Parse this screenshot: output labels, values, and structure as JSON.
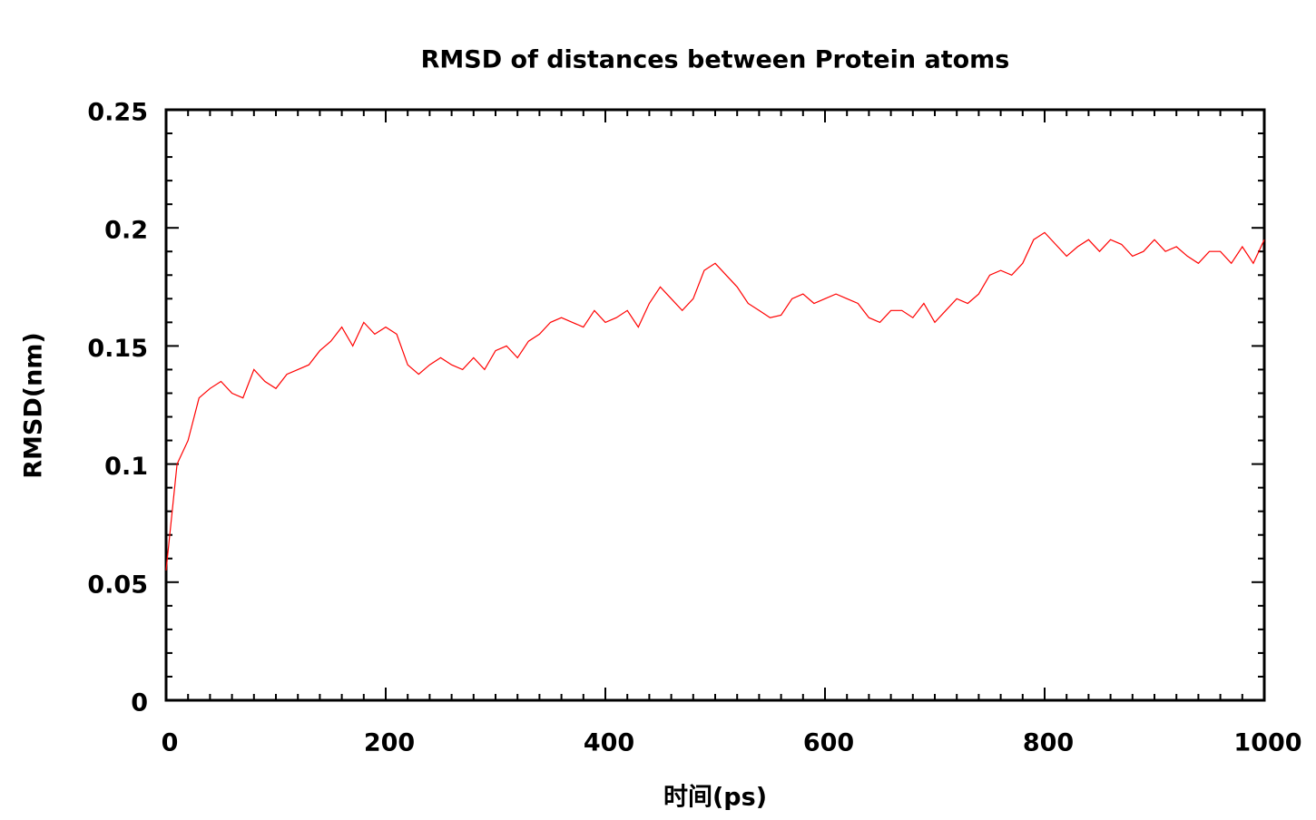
{
  "chart_data": {
    "type": "line",
    "title": "RMSD of distances between Protein atoms",
    "x_label": "时间(ps)",
    "y_label": "RMSD(nm)",
    "xlim": [
      0,
      1000
    ],
    "ylim": [
      0,
      0.25
    ],
    "xticks": [
      0,
      200,
      400,
      600,
      800,
      1000
    ],
    "yticks": [
      0,
      0.05,
      0.1,
      0.15,
      0.2,
      0.25
    ],
    "xminorticks": [
      20,
      40,
      60,
      80,
      100,
      120,
      140,
      160,
      180,
      220,
      240,
      260,
      280,
      300,
      320,
      340,
      360,
      380,
      420,
      440,
      460,
      480,
      500,
      520,
      540,
      560,
      580,
      620,
      640,
      660,
      680,
      700,
      720,
      740,
      760,
      780,
      820,
      840,
      860,
      880,
      900,
      920,
      940,
      960,
      980
    ],
    "yminorticks": [
      0.01,
      0.02,
      0.03,
      0.04,
      0.06,
      0.07,
      0.08,
      0.09,
      0.11,
      0.12,
      0.13,
      0.14,
      0.16,
      0.17,
      0.18,
      0.19,
      0.21,
      0.22,
      0.23,
      0.24
    ],
    "x": [
      0,
      10,
      20,
      30,
      40,
      50,
      60,
      70,
      80,
      90,
      100,
      110,
      120,
      130,
      140,
      150,
      160,
      170,
      180,
      190,
      200,
      210,
      220,
      230,
      240,
      250,
      260,
      270,
      280,
      290,
      300,
      310,
      320,
      330,
      340,
      350,
      360,
      370,
      380,
      390,
      400,
      410,
      420,
      430,
      440,
      450,
      460,
      470,
      480,
      490,
      500,
      510,
      520,
      530,
      540,
      550,
      560,
      570,
      580,
      590,
      600,
      610,
      620,
      630,
      640,
      650,
      660,
      670,
      680,
      690,
      700,
      710,
      720,
      730,
      740,
      750,
      760,
      770,
      780,
      790,
      800,
      810,
      820,
      830,
      840,
      850,
      860,
      870,
      880,
      890,
      900,
      910,
      920,
      930,
      940,
      950,
      960,
      970,
      980,
      990,
      1000
    ],
    "series": [
      {
        "name": "RMSD",
        "color": "#ff0000",
        "values": [
          0.055,
          0.1,
          0.11,
          0.128,
          0.132,
          0.135,
          0.13,
          0.128,
          0.14,
          0.135,
          0.132,
          0.138,
          0.14,
          0.142,
          0.148,
          0.152,
          0.158,
          0.15,
          0.16,
          0.155,
          0.158,
          0.155,
          0.142,
          0.138,
          0.142,
          0.145,
          0.142,
          0.14,
          0.145,
          0.14,
          0.148,
          0.15,
          0.145,
          0.152,
          0.155,
          0.16,
          0.162,
          0.16,
          0.158,
          0.165,
          0.16,
          0.162,
          0.165,
          0.158,
          0.168,
          0.175,
          0.17,
          0.165,
          0.17,
          0.182,
          0.185,
          0.18,
          0.175,
          0.168,
          0.165,
          0.162,
          0.163,
          0.17,
          0.172,
          0.168,
          0.17,
          0.172,
          0.17,
          0.168,
          0.162,
          0.16,
          0.165,
          0.165,
          0.162,
          0.168,
          0.16,
          0.165,
          0.17,
          0.168,
          0.172,
          0.18,
          0.182,
          0.18,
          0.185,
          0.195,
          0.198,
          0.193,
          0.188,
          0.192,
          0.195,
          0.19,
          0.195,
          0.193,
          0.188,
          0.19,
          0.195,
          0.19,
          0.192,
          0.188,
          0.185,
          0.19,
          0.19,
          0.185,
          0.192,
          0.185,
          0.195
        ]
      }
    ]
  }
}
